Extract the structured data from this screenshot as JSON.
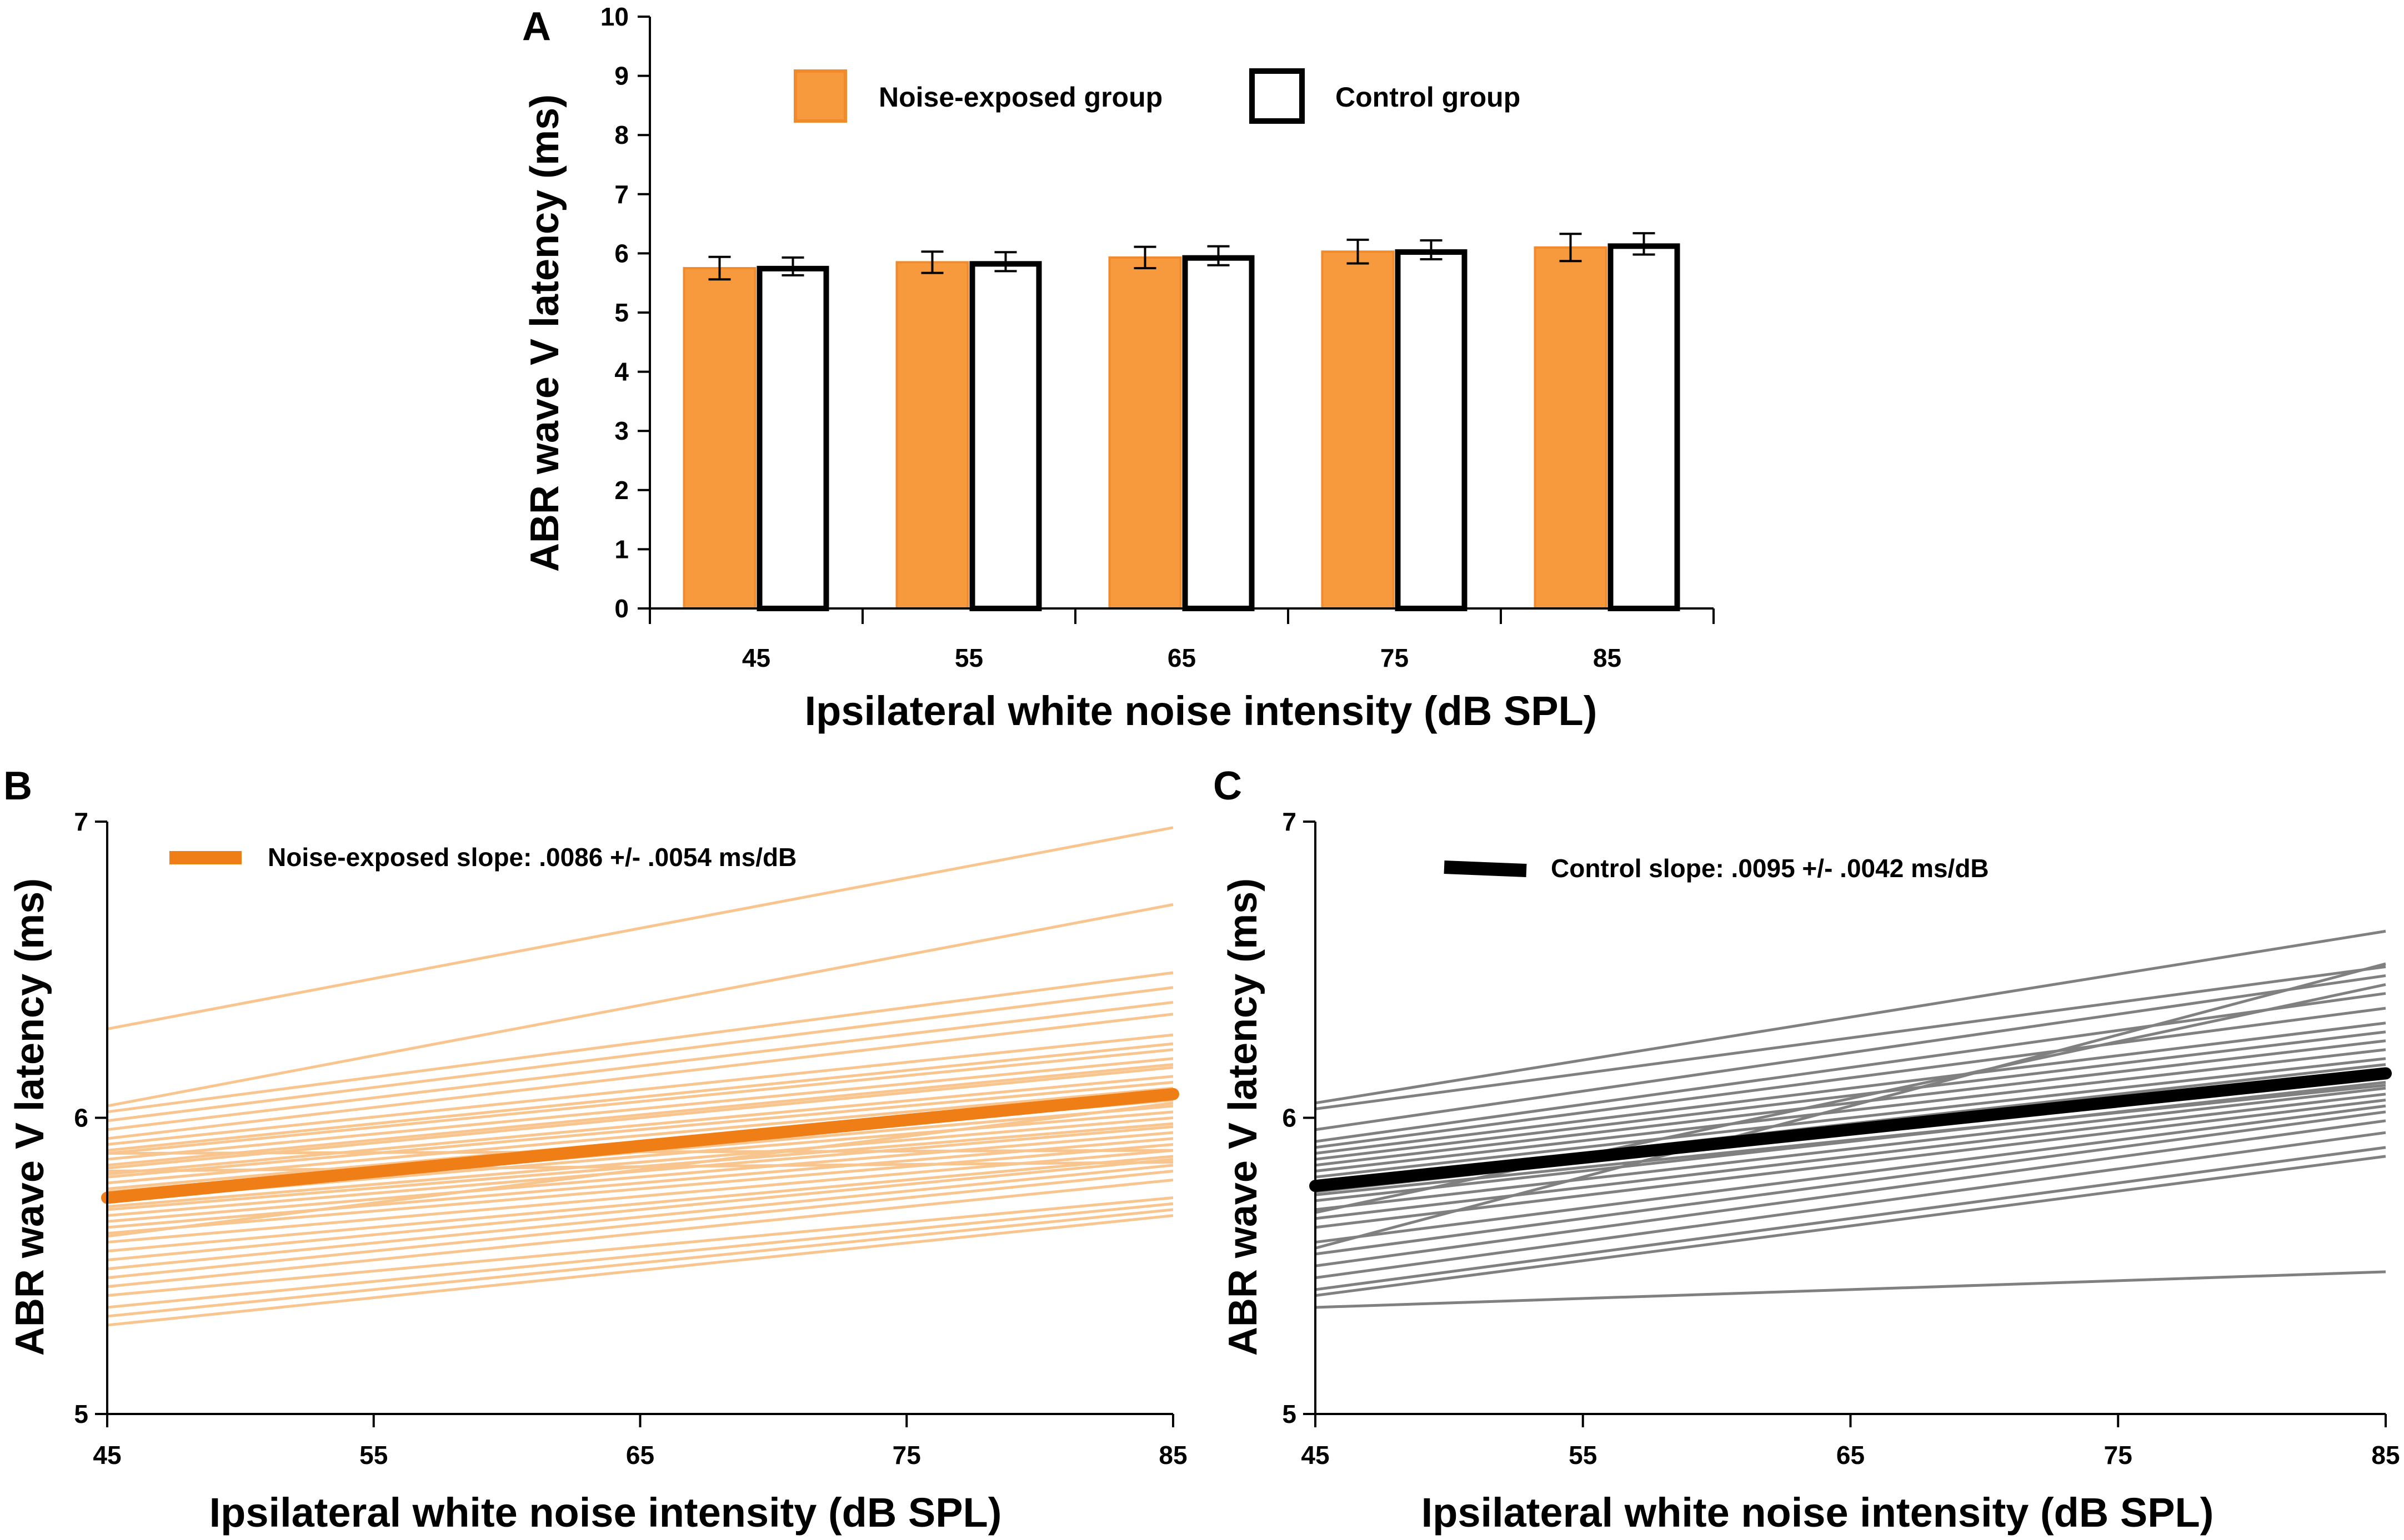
{
  "colors": {
    "noise_bar": "#F79A3E",
    "noise_bar_edge": "#F08A2A",
    "noise_mean": "#F07E16",
    "noise_ind": "#F9C58E",
    "control_mean": "#000000",
    "control_ind": "#808080"
  },
  "chart_data": [
    {
      "panel": "A",
      "type": "bar",
      "title": "",
      "xlabel": "Ipsilateral white noise intensity (dB SPL)",
      "ylabel": "ABR wave V latency (ms)",
      "ylim": [
        0,
        10
      ],
      "yticks": [
        "0",
        "1",
        "2",
        "3",
        "4",
        "5",
        "6",
        "7",
        "8",
        "9",
        "10"
      ],
      "categories": [
        "45",
        "55",
        "65",
        "75",
        "85"
      ],
      "legend_position": "top-center",
      "series": [
        {
          "name": "Noise-exposed group",
          "values": [
            5.75,
            5.85,
            5.93,
            6.03,
            6.1
          ],
          "errors": [
            0.19,
            0.18,
            0.18,
            0.2,
            0.23
          ]
        },
        {
          "name": "Control group",
          "values": [
            5.78,
            5.86,
            5.96,
            6.06,
            6.16
          ],
          "errors": [
            0.15,
            0.16,
            0.16,
            0.16,
            0.18
          ]
        }
      ]
    },
    {
      "panel": "B",
      "type": "line",
      "xlabel": "Ipsilateral white noise intensity (dB SPL)",
      "ylabel": "ABR wave V latency (ms)",
      "xlim": [
        45,
        85
      ],
      "ylim": [
        5,
        7
      ],
      "xticks": [
        "45",
        "55",
        "65",
        "75",
        "85"
      ],
      "yticks": [
        "5",
        "6",
        "7"
      ],
      "legend_label": "Noise-exposed slope: .0086 +/- .0054 ms/dB",
      "legend_position": "top-left",
      "mean_line": {
        "x": [
          45,
          85
        ],
        "y": [
          5.73,
          6.08
        ]
      },
      "individual_lines": [
        [
          6.3,
          6.98
        ],
        [
          6.04,
          6.72
        ],
        [
          6.02,
          6.49
        ],
        [
          5.99,
          6.44
        ],
        [
          5.96,
          6.39
        ],
        [
          5.93,
          6.35
        ],
        [
          5.91,
          6.28
        ],
        [
          5.89,
          6.25
        ],
        [
          5.88,
          6.23
        ],
        [
          5.86,
          6.2
        ],
        [
          5.84,
          6.18
        ],
        [
          5.83,
          6.17
        ],
        [
          5.81,
          6.14
        ],
        [
          5.8,
          6.12
        ],
        [
          5.78,
          6.1
        ],
        [
          5.76,
          6.08
        ],
        [
          5.75,
          6.06
        ],
        [
          5.73,
          6.04
        ],
        [
          5.72,
          6.02
        ],
        [
          5.7,
          6.0
        ],
        [
          5.69,
          5.98
        ],
        [
          5.67,
          5.97
        ],
        [
          5.65,
          5.95
        ],
        [
          5.63,
          5.93
        ],
        [
          5.61,
          5.91
        ],
        [
          5.58,
          5.89
        ],
        [
          5.55,
          5.87
        ],
        [
          5.52,
          5.86
        ],
        [
          5.49,
          5.84
        ],
        [
          5.46,
          5.82
        ],
        [
          5.43,
          5.79
        ],
        [
          5.4,
          5.73
        ],
        [
          5.36,
          5.71
        ],
        [
          5.33,
          5.69
        ],
        [
          5.3,
          5.67
        ],
        [
          5.88,
          5.89
        ],
        [
          5.82,
          5.85
        ],
        [
          5.6,
          6.05
        ]
      ]
    },
    {
      "panel": "C",
      "type": "line",
      "xlabel": "Ipsilateral white noise intensity (dB SPL)",
      "ylabel": "ABR wave V latency (ms)",
      "xlim": [
        45,
        85
      ],
      "ylim": [
        5,
        7
      ],
      "xticks": [
        "45",
        "55",
        "65",
        "75",
        "85"
      ],
      "yticks": [
        "5",
        "6",
        "7"
      ],
      "legend_label": "Control slope: .0095 +/- .0042 ms/dB",
      "legend_position": "top-left",
      "mean_line": {
        "x": [
          45,
          85
        ],
        "y": [
          5.77,
          6.15
        ]
      },
      "individual_lines": [
        [
          6.05,
          6.63
        ],
        [
          6.03,
          6.51
        ],
        [
          5.96,
          6.48
        ],
        [
          5.92,
          6.42
        ],
        [
          5.9,
          6.37
        ],
        [
          5.88,
          6.32
        ],
        [
          5.86,
          6.29
        ],
        [
          5.84,
          6.26
        ],
        [
          5.82,
          6.23
        ],
        [
          5.8,
          6.2
        ],
        [
          5.78,
          6.18
        ],
        [
          5.75,
          6.15
        ],
        [
          5.72,
          6.12
        ],
        [
          5.69,
          6.1
        ],
        [
          5.66,
          6.08
        ],
        [
          5.63,
          6.06
        ],
        [
          5.58,
          6.04
        ],
        [
          5.54,
          6.02
        ],
        [
          5.5,
          5.99
        ],
        [
          5.46,
          5.95
        ],
        [
          5.42,
          5.9
        ],
        [
          5.4,
          5.87
        ],
        [
          5.36,
          5.48
        ],
        [
          5.56,
          6.52
        ],
        [
          5.68,
          6.45
        ],
        [
          5.74,
          6.11
        ]
      ]
    }
  ]
}
